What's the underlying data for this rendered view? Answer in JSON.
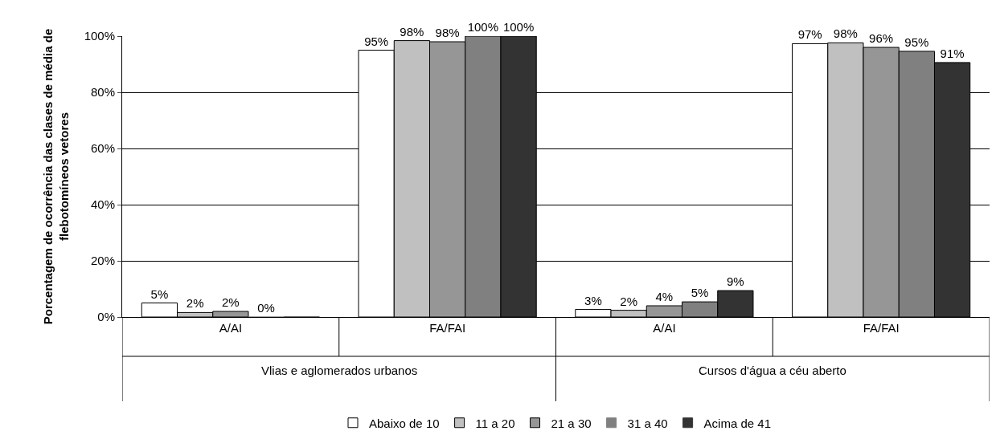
{
  "chart_data": {
    "type": "bar",
    "ylabel": "Porcentagem de ocorrência das clases de média de\nflebotomíneos vetores",
    "categories": [
      "A/AI",
      "FA/FAI",
      "A/AI",
      "FA/FAI"
    ],
    "annotations": [
      "Vlias e aglomerados urbanos",
      "Cursos d'água a céu aberto"
    ],
    "series": [
      {
        "name": "Abaixo de 10",
        "color": "#ffffff",
        "values": [
          5,
          95,
          2.7,
          97.3
        ],
        "value_labels": [
          "5%",
          "95%",
          "3%",
          "97%"
        ]
      },
      {
        "name": "11 a 20",
        "color": "#c0c0c0",
        "values": [
          1.6,
          98.4,
          2.4,
          97.6
        ],
        "value_labels": [
          "2%",
          "98%",
          "2%",
          "98%"
        ]
      },
      {
        "name": "21 a 30",
        "color": "#969696",
        "values": [
          2,
          98,
          4,
          96
        ],
        "value_labels": [
          "2%",
          "98%",
          "4%",
          "96%"
        ]
      },
      {
        "name": "31 a 40",
        "color": "#808080",
        "values": [
          0,
          100,
          5.4,
          94.6
        ],
        "value_labels": [
          "0%",
          "100%",
          "5%",
          "95%"
        ]
      },
      {
        "name": "Acima de 41",
        "color": "#333333",
        "values": [
          0,
          100,
          9.4,
          90.6
        ],
        "value_labels": [
          null,
          "100%",
          "9%",
          "91%"
        ]
      }
    ],
    "ylim": [
      0,
      100
    ],
    "yticks": [
      {
        "value": 0,
        "label": "0%"
      },
      {
        "value": 20,
        "label": "20%"
      },
      {
        "value": 40,
        "label": "40%"
      },
      {
        "value": 60,
        "label": "60%"
      },
      {
        "value": 80,
        "label": "80%"
      },
      {
        "value": 100,
        "label": "100%"
      }
    ],
    "grid": "y",
    "legend": "bottom"
  }
}
